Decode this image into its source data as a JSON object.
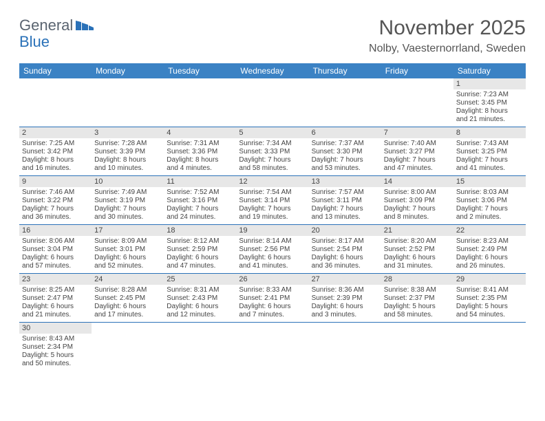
{
  "logo": {
    "text1": "General",
    "text2": "Blue"
  },
  "title": "November 2025",
  "location": "Nolby, Vaesternorrland, Sweden",
  "colors": {
    "header_bg": "#3b82c4",
    "header_fg": "#ffffff",
    "row_sep": "#2a71b8",
    "daynum_bg": "#e7e7e7",
    "text": "#444444",
    "logo_gray": "#5a6470",
    "logo_blue": "#2a71b8"
  },
  "weekdays": [
    "Sunday",
    "Monday",
    "Tuesday",
    "Wednesday",
    "Thursday",
    "Friday",
    "Saturday"
  ],
  "weeks": [
    [
      {
        "n": "",
        "lines": []
      },
      {
        "n": "",
        "lines": []
      },
      {
        "n": "",
        "lines": []
      },
      {
        "n": "",
        "lines": []
      },
      {
        "n": "",
        "lines": []
      },
      {
        "n": "",
        "lines": []
      },
      {
        "n": "1",
        "lines": [
          "Sunrise: 7:23 AM",
          "Sunset: 3:45 PM",
          "Daylight: 8 hours",
          "and 21 minutes."
        ]
      }
    ],
    [
      {
        "n": "2",
        "lines": [
          "Sunrise: 7:25 AM",
          "Sunset: 3:42 PM",
          "Daylight: 8 hours",
          "and 16 minutes."
        ]
      },
      {
        "n": "3",
        "lines": [
          "Sunrise: 7:28 AM",
          "Sunset: 3:39 PM",
          "Daylight: 8 hours",
          "and 10 minutes."
        ]
      },
      {
        "n": "4",
        "lines": [
          "Sunrise: 7:31 AM",
          "Sunset: 3:36 PM",
          "Daylight: 8 hours",
          "and 4 minutes."
        ]
      },
      {
        "n": "5",
        "lines": [
          "Sunrise: 7:34 AM",
          "Sunset: 3:33 PM",
          "Daylight: 7 hours",
          "and 58 minutes."
        ]
      },
      {
        "n": "6",
        "lines": [
          "Sunrise: 7:37 AM",
          "Sunset: 3:30 PM",
          "Daylight: 7 hours",
          "and 53 minutes."
        ]
      },
      {
        "n": "7",
        "lines": [
          "Sunrise: 7:40 AM",
          "Sunset: 3:27 PM",
          "Daylight: 7 hours",
          "and 47 minutes."
        ]
      },
      {
        "n": "8",
        "lines": [
          "Sunrise: 7:43 AM",
          "Sunset: 3:25 PM",
          "Daylight: 7 hours",
          "and 41 minutes."
        ]
      }
    ],
    [
      {
        "n": "9",
        "lines": [
          "Sunrise: 7:46 AM",
          "Sunset: 3:22 PM",
          "Daylight: 7 hours",
          "and 36 minutes."
        ]
      },
      {
        "n": "10",
        "lines": [
          "Sunrise: 7:49 AM",
          "Sunset: 3:19 PM",
          "Daylight: 7 hours",
          "and 30 minutes."
        ]
      },
      {
        "n": "11",
        "lines": [
          "Sunrise: 7:52 AM",
          "Sunset: 3:16 PM",
          "Daylight: 7 hours",
          "and 24 minutes."
        ]
      },
      {
        "n": "12",
        "lines": [
          "Sunrise: 7:54 AM",
          "Sunset: 3:14 PM",
          "Daylight: 7 hours",
          "and 19 minutes."
        ]
      },
      {
        "n": "13",
        "lines": [
          "Sunrise: 7:57 AM",
          "Sunset: 3:11 PM",
          "Daylight: 7 hours",
          "and 13 minutes."
        ]
      },
      {
        "n": "14",
        "lines": [
          "Sunrise: 8:00 AM",
          "Sunset: 3:09 PM",
          "Daylight: 7 hours",
          "and 8 minutes."
        ]
      },
      {
        "n": "15",
        "lines": [
          "Sunrise: 8:03 AM",
          "Sunset: 3:06 PM",
          "Daylight: 7 hours",
          "and 2 minutes."
        ]
      }
    ],
    [
      {
        "n": "16",
        "lines": [
          "Sunrise: 8:06 AM",
          "Sunset: 3:04 PM",
          "Daylight: 6 hours",
          "and 57 minutes."
        ]
      },
      {
        "n": "17",
        "lines": [
          "Sunrise: 8:09 AM",
          "Sunset: 3:01 PM",
          "Daylight: 6 hours",
          "and 52 minutes."
        ]
      },
      {
        "n": "18",
        "lines": [
          "Sunrise: 8:12 AM",
          "Sunset: 2:59 PM",
          "Daylight: 6 hours",
          "and 47 minutes."
        ]
      },
      {
        "n": "19",
        "lines": [
          "Sunrise: 8:14 AM",
          "Sunset: 2:56 PM",
          "Daylight: 6 hours",
          "and 41 minutes."
        ]
      },
      {
        "n": "20",
        "lines": [
          "Sunrise: 8:17 AM",
          "Sunset: 2:54 PM",
          "Daylight: 6 hours",
          "and 36 minutes."
        ]
      },
      {
        "n": "21",
        "lines": [
          "Sunrise: 8:20 AM",
          "Sunset: 2:52 PM",
          "Daylight: 6 hours",
          "and 31 minutes."
        ]
      },
      {
        "n": "22",
        "lines": [
          "Sunrise: 8:23 AM",
          "Sunset: 2:49 PM",
          "Daylight: 6 hours",
          "and 26 minutes."
        ]
      }
    ],
    [
      {
        "n": "23",
        "lines": [
          "Sunrise: 8:25 AM",
          "Sunset: 2:47 PM",
          "Daylight: 6 hours",
          "and 21 minutes."
        ]
      },
      {
        "n": "24",
        "lines": [
          "Sunrise: 8:28 AM",
          "Sunset: 2:45 PM",
          "Daylight: 6 hours",
          "and 17 minutes."
        ]
      },
      {
        "n": "25",
        "lines": [
          "Sunrise: 8:31 AM",
          "Sunset: 2:43 PM",
          "Daylight: 6 hours",
          "and 12 minutes."
        ]
      },
      {
        "n": "26",
        "lines": [
          "Sunrise: 8:33 AM",
          "Sunset: 2:41 PM",
          "Daylight: 6 hours",
          "and 7 minutes."
        ]
      },
      {
        "n": "27",
        "lines": [
          "Sunrise: 8:36 AM",
          "Sunset: 2:39 PM",
          "Daylight: 6 hours",
          "and 3 minutes."
        ]
      },
      {
        "n": "28",
        "lines": [
          "Sunrise: 8:38 AM",
          "Sunset: 2:37 PM",
          "Daylight: 5 hours",
          "and 58 minutes."
        ]
      },
      {
        "n": "29",
        "lines": [
          "Sunrise: 8:41 AM",
          "Sunset: 2:35 PM",
          "Daylight: 5 hours",
          "and 54 minutes."
        ]
      }
    ],
    [
      {
        "n": "30",
        "lines": [
          "Sunrise: 8:43 AM",
          "Sunset: 2:34 PM",
          "Daylight: 5 hours",
          "and 50 minutes."
        ]
      },
      {
        "n": "",
        "lines": []
      },
      {
        "n": "",
        "lines": []
      },
      {
        "n": "",
        "lines": []
      },
      {
        "n": "",
        "lines": []
      },
      {
        "n": "",
        "lines": []
      },
      {
        "n": "",
        "lines": []
      }
    ]
  ]
}
